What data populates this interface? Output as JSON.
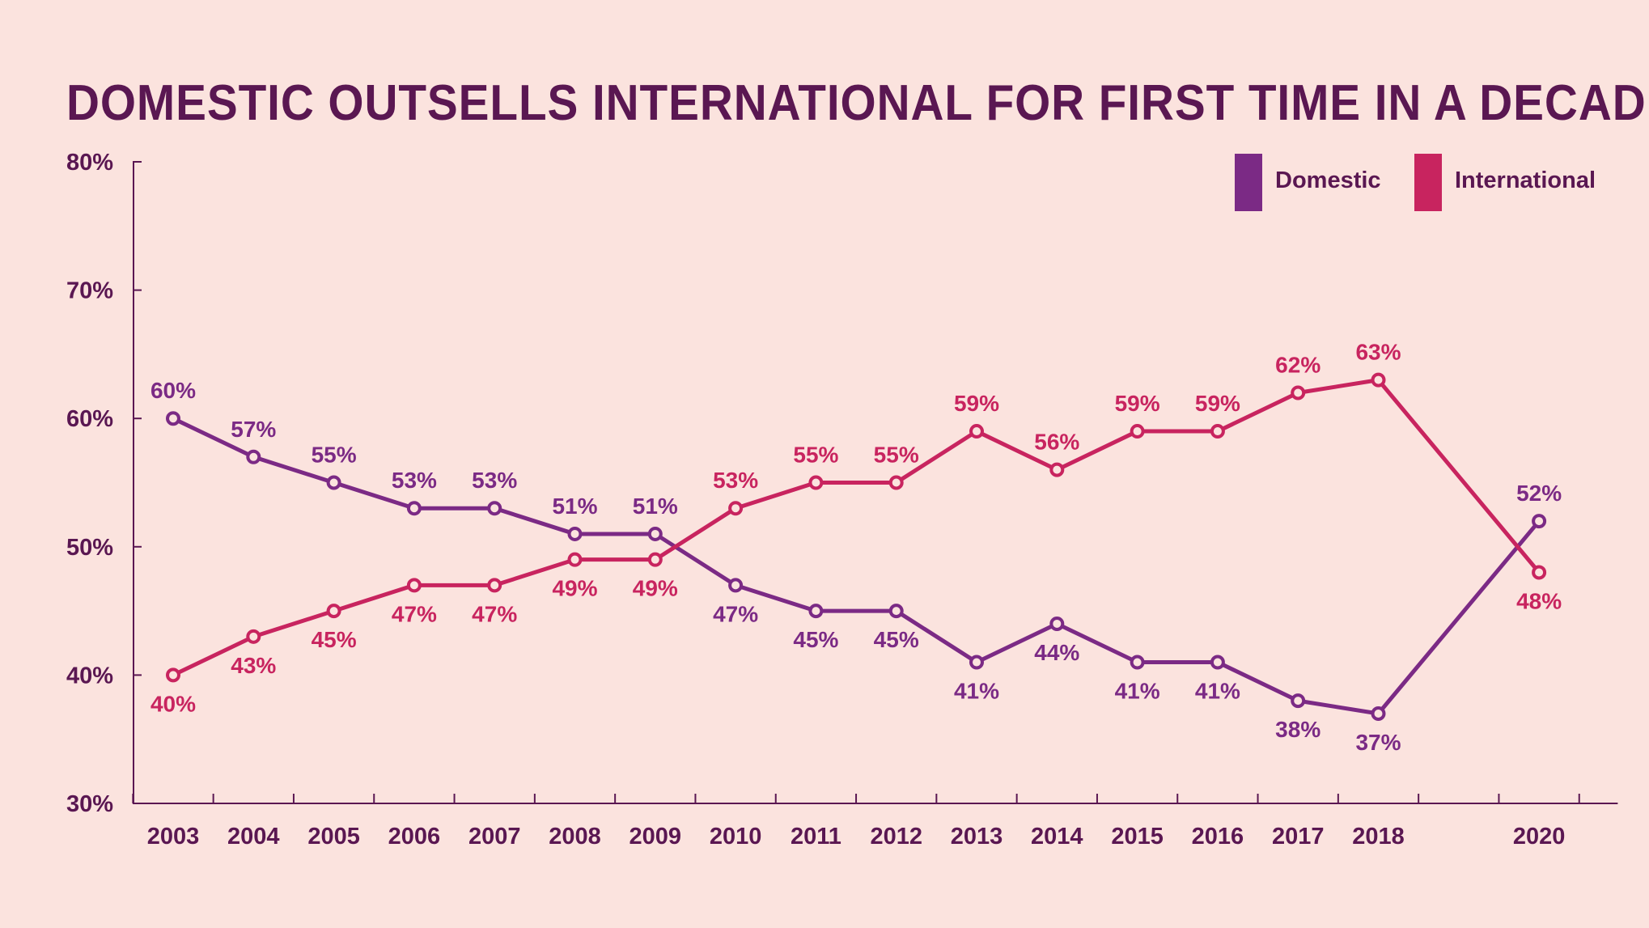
{
  "colors": {
    "background": "#fbe3de",
    "text": "#5a1752",
    "domestic": "#7b2a85",
    "international": "#c8245f"
  },
  "chart_data": {
    "type": "line",
    "title": "DOMESTIC OUTSELLS INTERNATIONAL FOR FIRST TIME IN A DECADE",
    "xlabel": "",
    "ylabel": "",
    "ylim": [
      30,
      80
    ],
    "y_ticks": [
      "30%",
      "40%",
      "50%",
      "60%",
      "70%",
      "80%"
    ],
    "x": [
      2003,
      2004,
      2005,
      2006,
      2007,
      2008,
      2009,
      2010,
      2011,
      2012,
      2013,
      2014,
      2015,
      2016,
      2017,
      2018,
      2020
    ],
    "x_tick_positions": [
      2003,
      2004,
      2005,
      2006,
      2007,
      2008,
      2009,
      2010,
      2011,
      2012,
      2013,
      2014,
      2015,
      2016,
      2017,
      2018,
      2019,
      2020,
      2021
    ],
    "grid": false,
    "legend": "top-right",
    "series": [
      {
        "name": "Domestic",
        "color": "#7b2a85",
        "values": [
          60,
          57,
          55,
          53,
          53,
          51,
          51,
          47,
          45,
          45,
          41,
          44,
          41,
          41,
          38,
          37,
          52
        ],
        "labels": [
          "60%",
          "57%",
          "55%",
          "53%",
          "53%",
          "51%",
          "51%",
          "47%",
          "45%",
          "45%",
          "41%",
          "44%",
          "41%",
          "41%",
          "38%",
          "37%",
          "52%"
        ],
        "label_pos": [
          "above",
          "above",
          "above",
          "above",
          "above",
          "above",
          "above",
          "below",
          "below",
          "below",
          "below",
          "below",
          "below",
          "below",
          "below",
          "below",
          "above"
        ]
      },
      {
        "name": "International",
        "color": "#c8245f",
        "values": [
          40,
          43,
          45,
          47,
          47,
          49,
          49,
          53,
          55,
          55,
          59,
          56,
          59,
          59,
          62,
          63,
          48
        ],
        "labels": [
          "40%",
          "43%",
          "45%",
          "47%",
          "47%",
          "49%",
          "49%",
          "53%",
          "55%",
          "55%",
          "59%",
          "56%",
          "59%",
          "59%",
          "62%",
          "63%",
          "48%"
        ],
        "label_pos": [
          "below",
          "below",
          "below",
          "below",
          "below",
          "below",
          "below",
          "above",
          "above",
          "above",
          "above",
          "above",
          "above",
          "above",
          "above",
          "above",
          "below"
        ]
      }
    ]
  }
}
